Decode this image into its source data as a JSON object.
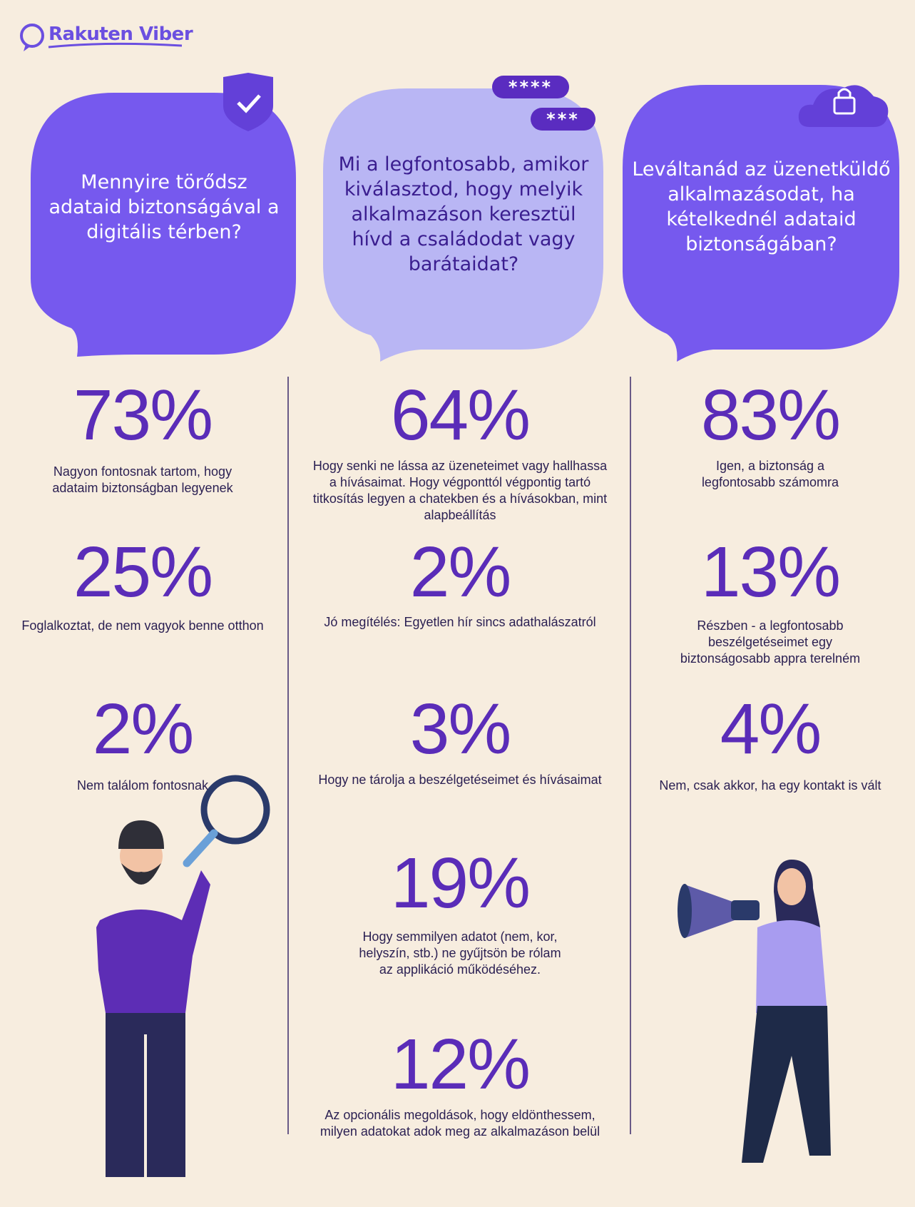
{
  "logo": "Rakuten Viber",
  "columns": [
    {
      "question": "Mennyire törődsz adataid biztonságával a digitális térben?",
      "answers": [
        {
          "value": "73%",
          "label": "Nagyon fontosnak tartom, hogy adataim biztonságban legyenek"
        },
        {
          "value": "25%",
          "label": "Foglalkoztat, de nem vagyok benne otthon"
        },
        {
          "value": "2%",
          "label": "Nem találom fontosnak"
        }
      ]
    },
    {
      "question": "Mi a legfontosabb, amikor kiválasztod, hogy melyik alkalmazáson keresztül hívd a családodat vagy barátaidat?",
      "badges": [
        "****",
        "***"
      ],
      "answers": [
        {
          "value": "64%",
          "label": "Hogy senki ne lássa az üzeneteimet vagy hallhassa a hívásaimat. Hogy végponttól végpontig tartó titkosítás legyen a chatekben és a hívásokban, mint alapbeállítás"
        },
        {
          "value": "2%",
          "label": "Jó megítélés: Egyetlen hír sincs adathalászatról"
        },
        {
          "value": "3%",
          "label": "Hogy ne tárolja a beszélgetéseimet és hívásaimat"
        },
        {
          "value": "19%",
          "label": "Hogy semmilyen adatot (nem, kor, helyszín, stb.) ne gyűjtsön be rólam az applikáció működéséhez."
        },
        {
          "value": "12%",
          "label": "Az opcionális megoldások, hogy eldönthessem, milyen adatokat adok meg az alkalmazáson belül"
        }
      ]
    },
    {
      "question": "Leváltanád az üzenetküldő alkalmazásodat, ha kételkednél adataid biztonságában?",
      "answers": [
        {
          "value": "83%",
          "label": "Igen, a biztonság a legfontosabb számomra"
        },
        {
          "value": "13%",
          "label": "Részben - a legfontosabb beszélgetéseimet egy biztonságosabb appra terelném"
        },
        {
          "value": "4%",
          "label": "Nem, csak akkor, ha egy kontakt is vált"
        }
      ]
    }
  ]
}
